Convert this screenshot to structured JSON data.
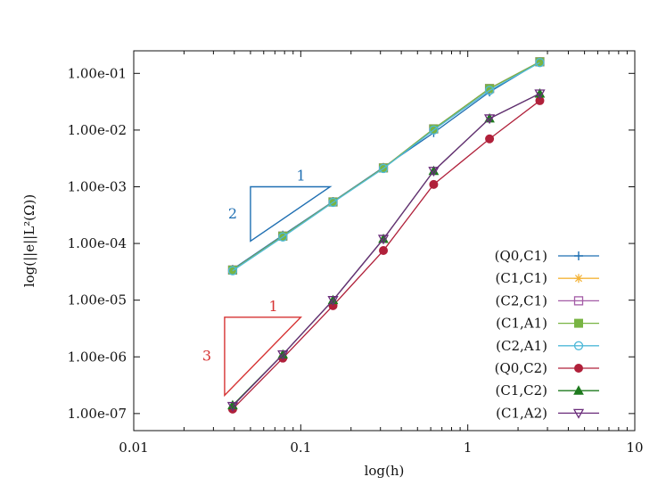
{
  "chart_data": {
    "type": "line",
    "title": "",
    "xlabel": "log(h)",
    "ylabel": "log(||e||L²(Ω))",
    "xscale": "log",
    "yscale": "log",
    "xlim": [
      0.01,
      10
    ],
    "ylim": [
      5e-08,
      0.25
    ],
    "x_ticks": [
      0.01,
      0.1,
      1,
      10
    ],
    "x_tick_labels": [
      "0.01",
      "0.1",
      "1",
      "10"
    ],
    "y_ticks": [
      1e-07,
      1e-06,
      1e-05,
      0.0001,
      0.001,
      0.01,
      0.1
    ],
    "y_tick_labels": [
      "1.00e-07",
      "1.00e-06",
      "1.00e-05",
      "1.00e-04",
      "1.00e-03",
      "1.00e-02",
      "1.00e-01"
    ],
    "grid": false,
    "legend_position": "bottom-right",
    "series": [
      {
        "name": "(Q0,C1)",
        "color": "#1f6fb2",
        "marker": "plus",
        "x": [
          0.0391,
          0.0781,
          0.156,
          0.3125,
          0.625,
          1.35,
          2.7
        ],
        "y": [
          3.5e-05,
          0.00014,
          0.00055,
          0.0022,
          0.009,
          0.047,
          0.16
        ]
      },
      {
        "name": "(C1,C1)",
        "color": "#f4b43a",
        "marker": "star",
        "x": [
          0.0391,
          0.0781,
          0.156,
          0.3125,
          0.625,
          1.35,
          2.7
        ],
        "y": [
          3.4e-05,
          0.000135,
          0.00054,
          0.00215,
          0.0105,
          0.054,
          0.16
        ]
      },
      {
        "name": "(C2,C1)",
        "color": "#a35ba6",
        "marker": "square-open",
        "x": [
          0.0391,
          0.0781,
          0.156,
          0.3125,
          0.625,
          1.35,
          2.7
        ],
        "y": [
          3.4e-05,
          0.000135,
          0.00054,
          0.00215,
          0.0105,
          0.054,
          0.16
        ]
      },
      {
        "name": "(C1,A1)",
        "color": "#78b443",
        "marker": "square-filled",
        "x": [
          0.0391,
          0.0781,
          0.156,
          0.3125,
          0.625,
          1.35,
          2.7
        ],
        "y": [
          3.4e-05,
          0.000135,
          0.00054,
          0.00215,
          0.0105,
          0.054,
          0.16
        ]
      },
      {
        "name": "(C2,A1)",
        "color": "#4fb9d8",
        "marker": "circle-open",
        "x": [
          0.0391,
          0.0781,
          0.156,
          0.3125,
          0.625,
          1.35,
          2.7
        ],
        "y": [
          3.3e-05,
          0.00013,
          0.00053,
          0.0021,
          0.01,
          0.05,
          0.155
        ]
      },
      {
        "name": "(Q0,C2)",
        "color": "#b0203a",
        "marker": "circle-filled",
        "x": [
          0.0391,
          0.0781,
          0.156,
          0.3125,
          0.625,
          1.35,
          2.7
        ],
        "y": [
          1.2e-07,
          9.5e-07,
          8e-06,
          7.5e-05,
          0.0011,
          0.007,
          0.033
        ]
      },
      {
        "name": "(C1,C2)",
        "color": "#1e7a1e",
        "marker": "triangle-up-filled",
        "x": [
          0.0391,
          0.0781,
          0.156,
          0.3125,
          0.625,
          1.35,
          2.7
        ],
        "y": [
          1.4e-07,
          1.1e-06,
          1e-05,
          0.00012,
          0.0019,
          0.016,
          0.044
        ]
      },
      {
        "name": "(C1,A2)",
        "color": "#6a2c7a",
        "marker": "triangle-down-open",
        "x": [
          0.0391,
          0.0781,
          0.156,
          0.3125,
          0.625,
          1.35,
          2.7
        ],
        "y": [
          1.35e-07,
          1.1e-06,
          1e-05,
          0.00012,
          0.0019,
          0.016,
          0.044
        ]
      }
    ],
    "annotations": [
      {
        "type": "slope-triangle",
        "color": "#1f6fb2",
        "x": [
          0.05,
          0.15
        ],
        "y": [
          0.001,
          0.00011
        ],
        "run_label": "1",
        "rise_label": "2"
      },
      {
        "type": "slope-triangle",
        "color": "#d63333",
        "x": [
          0.035,
          0.1
        ],
        "y": [
          5e-06,
          2.1e-07
        ],
        "run_label": "1",
        "rise_label": "3"
      }
    ]
  }
}
